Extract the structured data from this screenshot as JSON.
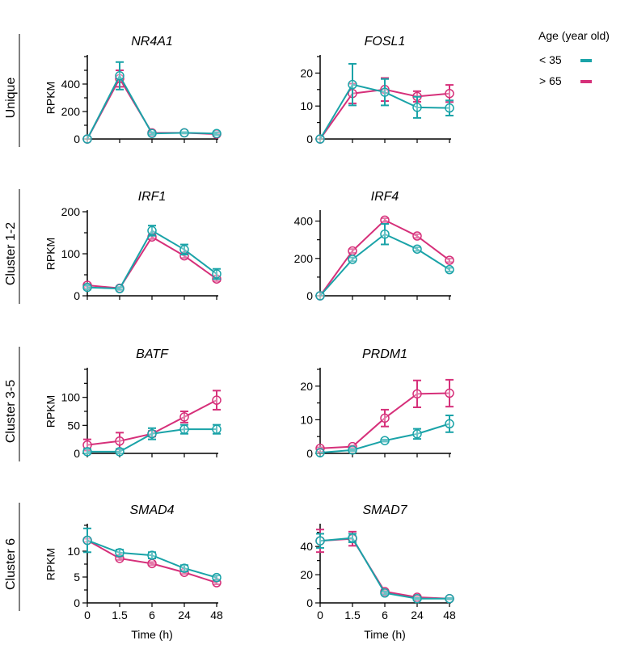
{
  "legend": {
    "title": "Age (year old)",
    "items": [
      {
        "label": "< 35",
        "color": "#1aa3a8"
      },
      {
        "label": "> 65",
        "color": "#d6307a"
      }
    ]
  },
  "chart_data": [
    {
      "type": "line",
      "row_label": "Unique",
      "title": "NR4A1",
      "xlabel": "",
      "ylabel": "RPKM",
      "categories": [
        "0",
        "1.5",
        "6",
        "24",
        "48"
      ],
      "ylim": [
        0,
        600
      ],
      "yticks": [
        0,
        200,
        400
      ],
      "series": [
        {
          "name": "< 35",
          "values": [
            0,
            460,
            40,
            45,
            40
          ],
          "err": [
            0,
            100,
            10,
            5,
            10
          ]
        },
        {
          "name": "> 65",
          "values": [
            0,
            440,
            45,
            45,
            35
          ],
          "err": [
            0,
            60,
            5,
            5,
            5
          ]
        }
      ]
    },
    {
      "type": "line",
      "row_label": "Unique",
      "title": "FOSL1",
      "xlabel": "",
      "ylabel": "",
      "categories": [
        "0",
        "1.5",
        "6",
        "24",
        "48"
      ],
      "ylim": [
        0,
        25
      ],
      "yticks": [
        0,
        10,
        20
      ],
      "series": [
        {
          "name": "< 35",
          "values": [
            0,
            16.5,
            14.2,
            9.6,
            9.4
          ],
          "err": [
            0,
            6.3,
            4,
            3.2,
            2.3
          ]
        },
        {
          "name": "> 65",
          "values": [
            0,
            13.8,
            15,
            12.9,
            13.8
          ],
          "err": [
            0,
            3,
            3.5,
            1.6,
            2.6
          ]
        }
      ]
    },
    {
      "type": "line",
      "row_label": "Cluster 1-2",
      "title": "IRF1",
      "xlabel": "",
      "ylabel": "RPKM",
      "categories": [
        "0",
        "1.5",
        "6",
        "24",
        "48"
      ],
      "ylim": [
        0,
        200
      ],
      "yticks": [
        0,
        100,
        200
      ],
      "series": [
        {
          "name": "< 35",
          "values": [
            20,
            17,
            155,
            110,
            52
          ],
          "err": [
            5,
            3,
            12,
            12,
            12
          ]
        },
        {
          "name": "> 65",
          "values": [
            25,
            18,
            140,
            95,
            40
          ],
          "err": [
            3,
            3,
            5,
            5,
            5
          ]
        }
      ]
    },
    {
      "type": "line",
      "row_label": "Cluster 1-2",
      "title": "IRF4",
      "xlabel": "",
      "ylabel": "",
      "categories": [
        "0",
        "1.5",
        "6",
        "24",
        "48"
      ],
      "ylim": [
        0,
        450
      ],
      "yticks": [
        0,
        200,
        400
      ],
      "series": [
        {
          "name": "< 35",
          "values": [
            0,
            195,
            330,
            250,
            140
          ],
          "err": [
            0,
            10,
            55,
            10,
            10
          ]
        },
        {
          "name": "> 65",
          "values": [
            0,
            240,
            405,
            320,
            190
          ],
          "err": [
            0,
            10,
            10,
            10,
            10
          ]
        }
      ]
    },
    {
      "type": "line",
      "row_label": "Cluster 3-5",
      "title": "BATF",
      "xlabel": "",
      "ylabel": "RPKM",
      "categories": [
        "0",
        "1.5",
        "6",
        "24",
        "48"
      ],
      "ylim": [
        0,
        150
      ],
      "yticks": [
        0,
        50,
        100
      ],
      "series": [
        {
          "name": "< 35",
          "values": [
            3,
            3,
            35,
            43,
            43
          ],
          "err": [
            5,
            5,
            10,
            8,
            8
          ]
        },
        {
          "name": "> 65",
          "values": [
            15,
            22,
            35,
            65,
            95
          ],
          "err": [
            10,
            15,
            5,
            10,
            17
          ]
        }
      ]
    },
    {
      "type": "line",
      "row_label": "Cluster 3-5",
      "title": "PRDM1",
      "xlabel": "",
      "ylabel": "",
      "categories": [
        "0",
        "1.5",
        "6",
        "24",
        "48"
      ],
      "ylim": [
        0,
        25
      ],
      "yticks": [
        0,
        10,
        20
      ],
      "series": [
        {
          "name": "< 35",
          "values": [
            0.2,
            1,
            3.8,
            5.8,
            8.8
          ],
          "err": [
            0,
            0.3,
            0.3,
            1.5,
            2.5
          ]
        },
        {
          "name": "> 65",
          "values": [
            1.5,
            2,
            10.5,
            17.7,
            17.9
          ],
          "err": [
            0.3,
            0.3,
            2.5,
            4,
            4
          ]
        }
      ]
    },
    {
      "type": "line",
      "row_label": "Cluster 6",
      "title": "SMAD4",
      "xlabel": "Time (h)",
      "ylabel": "RPKM",
      "categories": [
        "0",
        "1.5",
        "6",
        "24",
        "48"
      ],
      "ylim": [
        0,
        15
      ],
      "yticks": [
        0,
        5,
        10
      ],
      "series": [
        {
          "name": "< 35",
          "values": [
            12.1,
            9.7,
            9.2,
            6.7,
            4.9
          ],
          "err": [
            2.3,
            0.6,
            0.6,
            0.6,
            0.4
          ]
        },
        {
          "name": "> 65",
          "values": [
            12.1,
            8.6,
            7.6,
            5.9,
            3.9
          ],
          "err": [
            0.3,
            0.3,
            0.3,
            0.3,
            0.3
          ]
        }
      ]
    },
    {
      "type": "line",
      "row_label": "Cluster 6",
      "title": "SMAD7",
      "xlabel": "Time (h)",
      "ylabel": "",
      "categories": [
        "0",
        "1.5",
        "6",
        "24",
        "48"
      ],
      "ylim": [
        0,
        55
      ],
      "yticks": [
        0,
        20,
        40
      ],
      "series": [
        {
          "name": "< 35",
          "values": [
            44,
            46,
            7,
            3,
            3
          ],
          "err": [
            5,
            3,
            1,
            0.5,
            0.5
          ]
        },
        {
          "name": "> 65",
          "values": [
            44,
            45.5,
            8,
            4,
            3
          ],
          "err": [
            8,
            5,
            1,
            1,
            0.5
          ]
        }
      ]
    }
  ]
}
